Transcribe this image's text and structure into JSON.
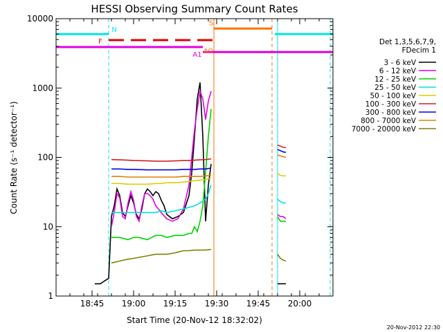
{
  "chart_data": {
    "type": "line",
    "title": "HESSI Observing Summary Count Rates",
    "xlabel": "Start Time (20-Nov-12 18:32:02)",
    "ylabel": "Count Rate (s⁻¹ detector⁻¹)",
    "yscale": "log",
    "ylim": [
      1,
      10000
    ],
    "xlim": [
      "18:32",
      "20:12"
    ],
    "x_ticks": [
      "18:45",
      "19:00",
      "19:15",
      "19:30",
      "19:45",
      "20:00"
    ],
    "y_ticks": [
      "1",
      "10",
      "100",
      "1000",
      "10000"
    ],
    "timestamp": "20-Nov-2012 22:30",
    "legend_header": [
      "Det 1,3,5,6,7,9,",
      "FDecim 1"
    ],
    "series": [
      {
        "name": "3 - 6 keV",
        "color": "#000000",
        "segments": [
          [
            [
              "18:46",
              1.5
            ],
            [
              "18:48",
              1.5
            ],
            [
              "18:49",
              1.6
            ],
            [
              "18:50",
              1.7
            ],
            [
              "18:51",
              1.8
            ],
            [
              "18:52",
              14
            ],
            [
              "18:53",
              20
            ],
            [
              "18:54",
              35
            ],
            [
              "18:55",
              28
            ],
            [
              "18:56",
              16
            ],
            [
              "18:57",
              14
            ],
            [
              "18:58",
              20
            ],
            [
              "18:59",
              28
            ],
            [
              "19:00",
              22
            ],
            [
              "19:01",
              15
            ],
            [
              "19:02",
              13
            ],
            [
              "19:03",
              18
            ],
            [
              "19:04",
              30
            ],
            [
              "19:05",
              35
            ],
            [
              "19:06",
              32
            ],
            [
              "19:07",
              28
            ],
            [
              "19:08",
              32
            ],
            [
              "19:09",
              30
            ],
            [
              "19:10",
              24
            ],
            [
              "19:11",
              20
            ],
            [
              "19:12",
              15
            ],
            [
              "19:14",
              13
            ],
            [
              "19:16",
              14
            ],
            [
              "19:18",
              16
            ],
            [
              "19:20",
              28
            ],
            [
              "19:21",
              60
            ],
            [
              "19:22",
              200
            ],
            [
              "19:23",
              700
            ],
            [
              "19:24",
              1200
            ],
            [
              "19:25",
              200
            ],
            [
              "19:26",
              12
            ],
            [
              "19:27",
              40
            ],
            [
              "19:28",
              80
            ]
          ],
          [
            [
              "19:52",
              1.5
            ],
            [
              "19:53",
              1.5
            ],
            [
              "19:54",
              1.5
            ],
            [
              "19:55",
              1.5
            ]
          ]
        ]
      },
      {
        "name": "6 - 12 keV",
        "color": "#e000e0",
        "segments": [
          [
            [
              "18:52",
              10
            ],
            [
              "18:53",
              16
            ],
            [
              "18:54",
              30
            ],
            [
              "18:55",
              26
            ],
            [
              "18:56",
              14
            ],
            [
              "18:57",
              13
            ],
            [
              "18:58",
              22
            ],
            [
              "18:59",
              32
            ],
            [
              "19:00",
              24
            ],
            [
              "19:01",
              14
            ],
            [
              "19:02",
              12
            ],
            [
              "19:03",
              20
            ],
            [
              "19:04",
              30
            ],
            [
              "19:05",
              30
            ],
            [
              "19:06",
              28
            ],
            [
              "19:07",
              25
            ],
            [
              "19:08",
              20
            ],
            [
              "19:09",
              18
            ],
            [
              "19:10",
              16
            ],
            [
              "19:12",
              13
            ],
            [
              "19:14",
              12
            ],
            [
              "19:16",
              13
            ],
            [
              "19:18",
              18
            ],
            [
              "19:20",
              40
            ],
            [
              "19:21",
              100
            ],
            [
              "19:22",
              250
            ],
            [
              "19:23",
              500
            ],
            [
              "19:24",
              900
            ],
            [
              "19:25",
              700
            ],
            [
              "19:26",
              350
            ],
            [
              "19:27",
              650
            ],
            [
              "19:28",
              900
            ]
          ],
          [
            [
              "19:52",
              15
            ],
            [
              "19:53",
              14
            ],
            [
              "19:54",
              14
            ],
            [
              "19:55",
              13
            ]
          ]
        ]
      },
      {
        "name": "12 - 25 keV",
        "color": "#00d000",
        "segments": [
          [
            [
              "18:52",
              7
            ],
            [
              "18:55",
              7
            ],
            [
              "18:58",
              6.5
            ],
            [
              "19:00",
              7
            ],
            [
              "19:02",
              7
            ],
            [
              "19:05",
              6.5
            ],
            [
              "19:08",
              7.5
            ],
            [
              "19:10",
              7.5
            ],
            [
              "19:12",
              7
            ],
            [
              "19:15",
              7.5
            ],
            [
              "19:18",
              7.5
            ],
            [
              "19:20",
              8
            ],
            [
              "19:21",
              8
            ],
            [
              "19:22",
              10
            ],
            [
              "19:23",
              8.5
            ],
            [
              "19:24",
              12
            ],
            [
              "19:25",
              20
            ],
            [
              "19:26",
              60
            ],
            [
              "19:27",
              200
            ],
            [
              "19:28",
              500
            ]
          ],
          [
            [
              "19:52",
              14
            ],
            [
              "19:53",
              12
            ],
            [
              "19:54",
              12
            ],
            [
              "19:55",
              12
            ]
          ]
        ]
      },
      {
        "name": "25 - 50 keV",
        "color": "#00e0e0",
        "segments": [
          [
            [
              "18:52",
              16
            ],
            [
              "18:55",
              16
            ],
            [
              "18:58",
              16
            ],
            [
              "19:00",
              16
            ],
            [
              "19:05",
              16
            ],
            [
              "19:08",
              16
            ],
            [
              "19:10",
              17
            ],
            [
              "19:12",
              16
            ],
            [
              "19:15",
              17
            ],
            [
              "19:18",
              18
            ],
            [
              "19:20",
              19
            ],
            [
              "19:22",
              20
            ],
            [
              "19:24",
              22
            ],
            [
              "19:26",
              25
            ],
            [
              "19:27",
              30
            ],
            [
              "19:28",
              40
            ]
          ],
          [
            [
              "19:52",
              25
            ],
            [
              "19:53",
              23
            ],
            [
              "19:54",
              22
            ],
            [
              "19:55",
              22
            ]
          ]
        ]
      },
      {
        "name": "50 - 100 keV",
        "color": "#d8d000",
        "segments": [
          [
            [
              "18:52",
              42
            ],
            [
              "18:55",
              42
            ],
            [
              "18:58",
              41
            ],
            [
              "19:00",
              41
            ],
            [
              "19:05",
              41
            ],
            [
              "19:08",
              42
            ],
            [
              "19:10",
              42
            ],
            [
              "19:12",
              43
            ],
            [
              "19:15",
              43
            ],
            [
              "19:18",
              44
            ],
            [
              "19:20",
              45
            ],
            [
              "19:22",
              46
            ],
            [
              "19:24",
              47
            ],
            [
              "19:26",
              48
            ],
            [
              "19:28",
              50
            ]
          ],
          [
            [
              "19:52",
              58
            ],
            [
              "19:53",
              55
            ],
            [
              "19:54",
              54
            ],
            [
              "19:55",
              54
            ]
          ]
        ]
      },
      {
        "name": "100 - 300 keV",
        "color": "#d02020",
        "segments": [
          [
            [
              "18:52",
              93
            ],
            [
              "18:55",
              92
            ],
            [
              "18:58",
              91
            ],
            [
              "19:00",
              90
            ],
            [
              "19:05",
              89
            ],
            [
              "19:08",
              88
            ],
            [
              "19:10",
              88
            ],
            [
              "19:12",
              88
            ],
            [
              "19:15",
              89
            ],
            [
              "19:18",
              90
            ],
            [
              "19:20",
              90
            ],
            [
              "19:22",
              91
            ],
            [
              "19:24",
              92
            ],
            [
              "19:26",
              93
            ],
            [
              "19:28",
              95
            ]
          ],
          [
            [
              "19:52",
              150
            ],
            [
              "19:53",
              145
            ],
            [
              "19:54",
              140
            ],
            [
              "19:55",
              138
            ]
          ]
        ]
      },
      {
        "name": "300 - 800 keV",
        "color": "#0000e0",
        "segments": [
          [
            [
              "18:52",
              68
            ],
            [
              "18:55",
              68
            ],
            [
              "18:58",
              67
            ],
            [
              "19:00",
              67
            ],
            [
              "19:05",
              66
            ],
            [
              "19:08",
              66
            ],
            [
              "19:10",
              66
            ],
            [
              "19:12",
              66
            ],
            [
              "19:15",
              66
            ],
            [
              "19:18",
              67
            ],
            [
              "19:20",
              67
            ],
            [
              "19:22",
              67
            ],
            [
              "19:24",
              68
            ],
            [
              "19:26",
              68
            ],
            [
              "19:28",
              70
            ]
          ],
          [
            [
              "19:52",
              130
            ],
            [
              "19:53",
              125
            ],
            [
              "19:54",
              120
            ],
            [
              "19:55",
              118
            ]
          ]
        ]
      },
      {
        "name": "800 - 7000 keV",
        "color": "#e08000",
        "segments": [
          [
            [
              "18:52",
              53
            ],
            [
              "18:55",
              53
            ],
            [
              "18:58",
              52
            ],
            [
              "19:00",
              52
            ],
            [
              "19:05",
              52
            ],
            [
              "19:08",
              52
            ],
            [
              "19:10",
              52
            ],
            [
              "19:12",
              52
            ],
            [
              "19:15",
              52
            ],
            [
              "19:18",
              53
            ],
            [
              "19:20",
              53
            ],
            [
              "19:22",
              53
            ],
            [
              "19:24",
              53
            ],
            [
              "19:26",
              54
            ],
            [
              "19:28",
              55
            ]
          ],
          [
            [
              "19:52",
              108
            ],
            [
              "19:53",
              105
            ],
            [
              "19:54",
              102
            ],
            [
              "19:55",
              100
            ]
          ]
        ]
      },
      {
        "name": "7000 - 20000 keV",
        "color": "#808000",
        "segments": [
          [
            [
              "18:52",
              3
            ],
            [
              "18:55",
              3.2
            ],
            [
              "18:58",
              3.4
            ],
            [
              "19:00",
              3.5
            ],
            [
              "19:05",
              3.8
            ],
            [
              "19:08",
              4
            ],
            [
              "19:10",
              4
            ],
            [
              "19:12",
              4
            ],
            [
              "19:15",
              4.2
            ],
            [
              "19:18",
              4.5
            ],
            [
              "19:20",
              4.5
            ],
            [
              "19:22",
              4.6
            ],
            [
              "19:24",
              4.6
            ],
            [
              "19:26",
              4.6
            ],
            [
              "19:28",
              4.7
            ]
          ],
          [
            [
              "19:52",
              4
            ],
            [
              "19:53",
              3.5
            ],
            [
              "19:54",
              3.3
            ],
            [
              "19:55",
              3.2
            ]
          ]
        ]
      }
    ],
    "flags": [
      {
        "label": "N",
        "color": "#00e8e8",
        "level": 6000,
        "segments": [
          [
            "18:32",
            "18:51"
          ],
          [
            "19:51",
            "20:12"
          ]
        ]
      },
      {
        "label": "F",
        "color": "#e00000",
        "level": 4900,
        "dashed": true,
        "segments": [
          [
            "18:51",
            "19:29"
          ]
        ]
      },
      {
        "label": "A1",
        "color": "#e000e0",
        "level": 3900,
        "segments": [
          [
            "18:32",
            "19:25"
          ]
        ]
      },
      {
        "label": "",
        "color": "#e000e0",
        "level": 3300,
        "segments": [
          [
            "19:25",
            "20:12"
          ]
        ]
      },
      {
        "label": "S",
        "color": "#ff7000",
        "level": 7200,
        "segments": [
          [
            "19:29",
            "19:50"
          ]
        ]
      },
      {
        "label": "AO",
        "color": "#ff7000",
        "level": 4200,
        "segments": []
      }
    ],
    "vlines": [
      {
        "time": "18:32",
        "color": "#00e8e8",
        "style": "solid"
      },
      {
        "time": "18:51",
        "color": "#00e8e8",
        "style": "dashed"
      },
      {
        "time": "19:29",
        "color": "#ff7000",
        "style": "solid"
      },
      {
        "time": "19:50",
        "color": "#ff7000",
        "style": "dashed"
      },
      {
        "time": "19:52",
        "color": "#00e8e8",
        "style": "solid"
      },
      {
        "time": "20:11",
        "color": "#00e8e8",
        "style": "dashed"
      }
    ]
  }
}
